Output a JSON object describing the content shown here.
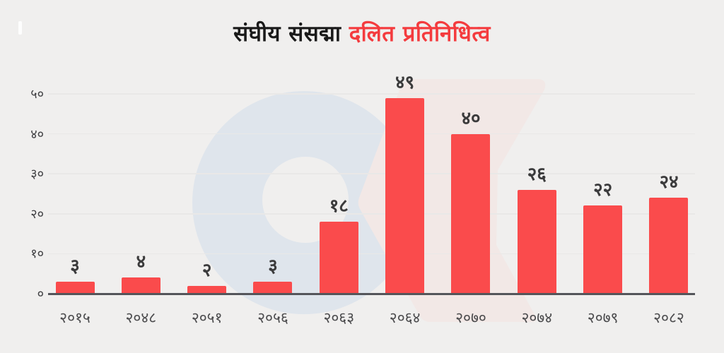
{
  "page": {
    "background": "#f0efee"
  },
  "title": {
    "black": "संघीय संसद्मा",
    "red": "दलित प्रतिनिधित्व",
    "red_color": "#f43b3e",
    "black_color": "#1a1a1a"
  },
  "watermark": {
    "circle_color": "#dfe5ec",
    "k_color": "#f2e8e6",
    "hole_color": "#f0efee"
  },
  "chart_data": {
    "type": "bar",
    "title": "संघीय संसद्मा दलित प्रतिनिधित्व",
    "categories": [
      "२०१५",
      "२०४८",
      "२०५१",
      "२०५६",
      "२०६३",
      "२०६४",
      "२०७०",
      "२०७४",
      "२०७९",
      "२०८२"
    ],
    "values": [
      3,
      4,
      2,
      3,
      18,
      49,
      40,
      26,
      22,
      24
    ],
    "value_labels": [
      "३",
      "४",
      "२",
      "३",
      "१८",
      "४९",
      "४०",
      "२६",
      "२२",
      "२४"
    ],
    "bar_color": "#fa4b4c",
    "xlabel": "",
    "ylabel": "",
    "ylim": [
      0,
      52
    ],
    "yticks": {
      "values": [
        50,
        40,
        30,
        20,
        10,
        0
      ],
      "labels": [
        "५०",
        "४०",
        "३०",
        "२०",
        "१०",
        "०"
      ]
    },
    "grid": "horizontal",
    "legend": "none"
  }
}
